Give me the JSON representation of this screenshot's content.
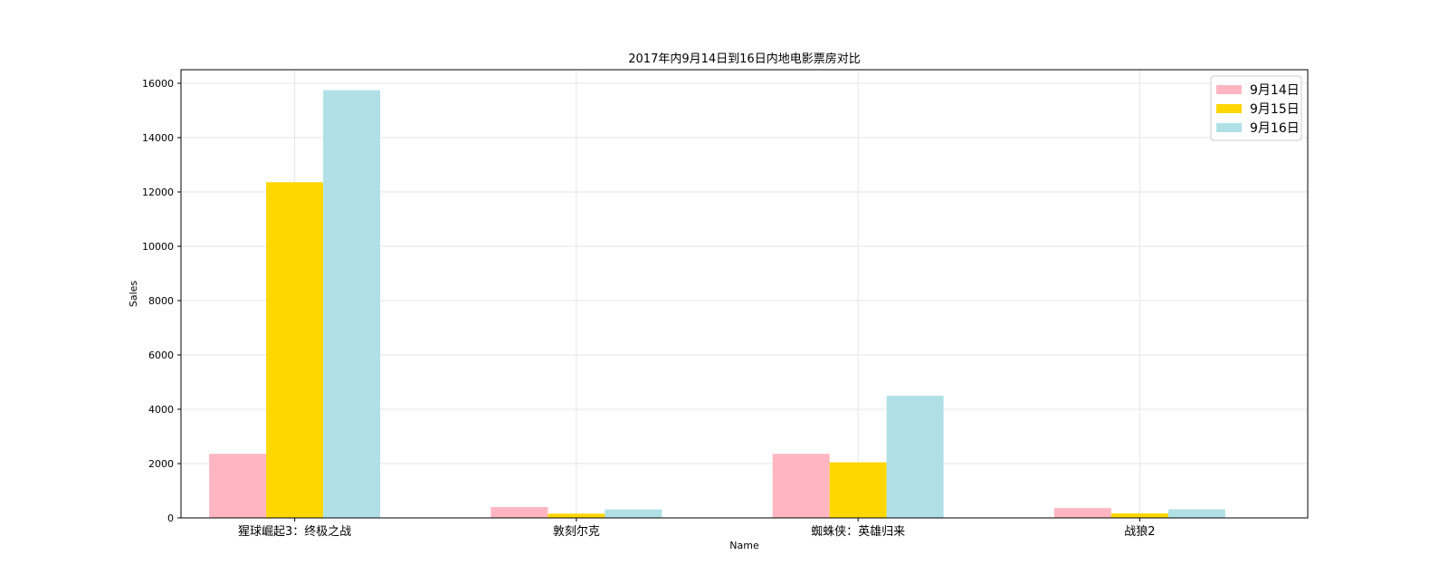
{
  "chart_data": {
    "type": "bar",
    "title": "2017年内9月14日到16日内地电影票房对比",
    "xlabel": "Name",
    "ylabel": "Sales",
    "categories": [
      "猩球崛起3：终极之战",
      "敦刻尔克",
      "蜘蛛侠：英雄归来",
      "战狼2"
    ],
    "series": [
      {
        "name": "9月14日",
        "color": "#ffb6c1",
        "values": [
          2358,
          399,
          2358,
          362
        ]
      },
      {
        "name": "9月15日",
        "color": "#ffd700",
        "values": [
          12357,
          156,
          2045,
          168
        ]
      },
      {
        "name": "9月16日",
        "color": "#b0e0e6",
        "values": [
          15746,
          312,
          4497,
          319
        ]
      }
    ],
    "ylim": [
      0,
      16500
    ],
    "yticks": [
      0,
      2000,
      4000,
      6000,
      8000,
      10000,
      12000,
      14000,
      16000
    ],
    "grid": true,
    "legend_position": "top-right"
  }
}
